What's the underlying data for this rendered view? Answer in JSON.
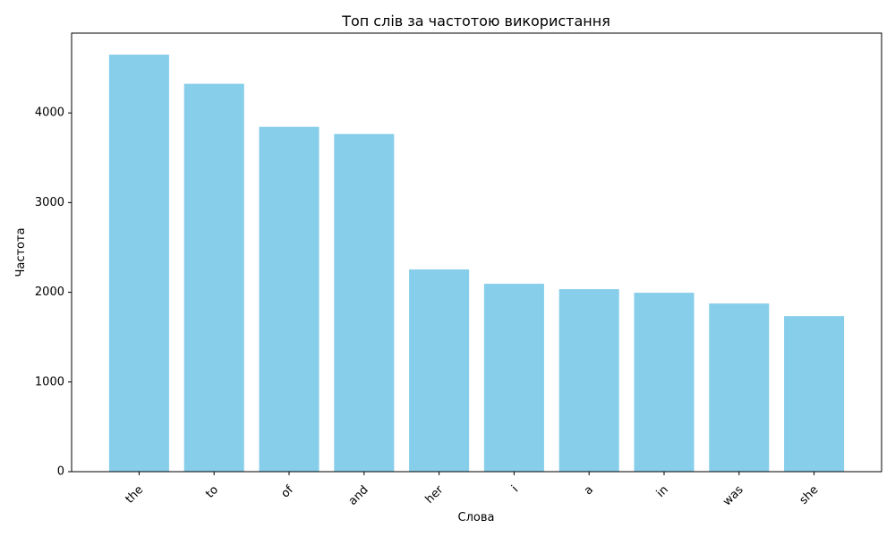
{
  "chart_data": {
    "type": "bar",
    "title": "Топ слів за частотою використання",
    "xlabel": "Слова",
    "ylabel": "Частота",
    "categories": [
      "the",
      "to",
      "of",
      "and",
      "her",
      "i",
      "a",
      "in",
      "was",
      "she"
    ],
    "values": [
      4650,
      4325,
      3845,
      3765,
      2255,
      2095,
      2035,
      1995,
      1875,
      1735
    ],
    "ylim": [
      0,
      4890
    ],
    "yticks": [
      0,
      1000,
      2000,
      3000,
      4000
    ],
    "bar_color": "#87ceeb",
    "grid": false,
    "legend": "none"
  }
}
